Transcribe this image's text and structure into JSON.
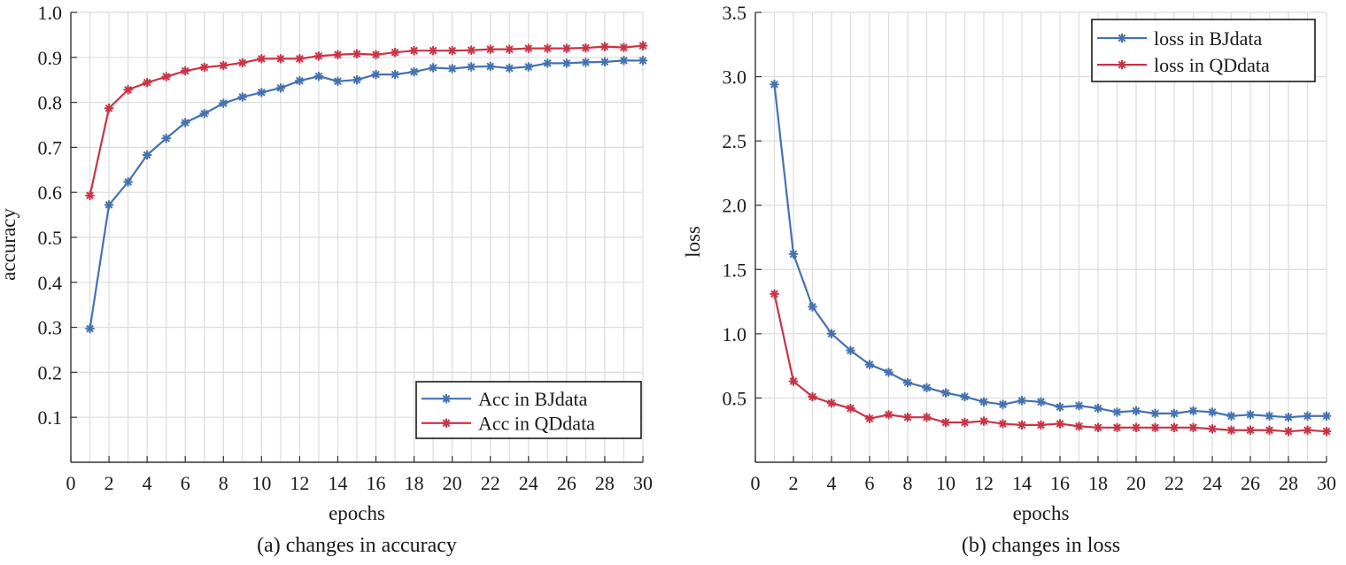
{
  "colors": {
    "bj": "#4572b0",
    "qd": "#c93446",
    "grid": "#dcdcdc",
    "axis": "#333333"
  },
  "chart_data": [
    {
      "id": "accuracy",
      "type": "line",
      "caption": "(a) changes in accuracy",
      "xlabel": "epochs",
      "ylabel": "accuracy",
      "xlim": [
        0,
        30
      ],
      "ylim": [
        0,
        1.0
      ],
      "xticks": [
        0,
        2,
        4,
        6,
        8,
        10,
        12,
        14,
        16,
        18,
        20,
        22,
        24,
        26,
        28,
        30
      ],
      "yticks": [
        0.1,
        0.2,
        0.3,
        0.4,
        0.5,
        0.6,
        0.7,
        0.8,
        0.9,
        1.0
      ],
      "ytick_labels": [
        "0.1",
        "0.2",
        "0.3",
        "0.4",
        "0.5",
        "0.6",
        "0.7",
        "0.8",
        "0.9",
        "1.0"
      ],
      "xtick_labels": [
        "0",
        "2",
        "4",
        "6",
        "8",
        "10",
        "12",
        "14",
        "16",
        "18",
        "20",
        "22",
        "24",
        "26",
        "28",
        "30"
      ],
      "grid": true,
      "legend_position": "bottom-right",
      "x": [
        1,
        2,
        3,
        4,
        5,
        6,
        7,
        8,
        9,
        10,
        11,
        12,
        13,
        14,
        15,
        16,
        17,
        18,
        19,
        20,
        21,
        22,
        23,
        24,
        25,
        26,
        27,
        28,
        29,
        30
      ],
      "series": [
        {
          "name": "Acc in BJdata",
          "color_key": "bj",
          "values": [
            0.297,
            0.572,
            0.623,
            0.683,
            0.72,
            0.755,
            0.775,
            0.798,
            0.812,
            0.822,
            0.832,
            0.848,
            0.858,
            0.847,
            0.85,
            0.862,
            0.862,
            0.868,
            0.877,
            0.875,
            0.879,
            0.88,
            0.876,
            0.879,
            0.887,
            0.887,
            0.889,
            0.89,
            0.893,
            0.893
          ]
        },
        {
          "name": "Acc in QDdata",
          "color_key": "qd",
          "values": [
            0.593,
            0.787,
            0.828,
            0.844,
            0.857,
            0.87,
            0.878,
            0.882,
            0.888,
            0.897,
            0.897,
            0.897,
            0.903,
            0.906,
            0.908,
            0.906,
            0.911,
            0.915,
            0.915,
            0.915,
            0.916,
            0.918,
            0.918,
            0.92,
            0.92,
            0.92,
            0.921,
            0.924,
            0.922,
            0.926
          ]
        }
      ]
    },
    {
      "id": "loss",
      "type": "line",
      "caption": "(b) changes in loss",
      "xlabel": "epochs",
      "ylabel": "loss",
      "xlim": [
        0,
        30
      ],
      "ylim": [
        0,
        3.5
      ],
      "xticks": [
        0,
        2,
        4,
        6,
        8,
        10,
        12,
        14,
        16,
        18,
        20,
        22,
        24,
        26,
        28,
        30
      ],
      "yticks": [
        0.5,
        1.0,
        1.5,
        2.0,
        2.5,
        3.0,
        3.5
      ],
      "ytick_labels": [
        "0.5",
        "1.0",
        "1.5",
        "2.0",
        "2.5",
        "3.0",
        "3.5"
      ],
      "xtick_labels": [
        "0",
        "2",
        "4",
        "6",
        "8",
        "10",
        "12",
        "14",
        "16",
        "18",
        "20",
        "22",
        "24",
        "26",
        "28",
        "30"
      ],
      "grid": true,
      "legend_position": "top-right",
      "x": [
        1,
        2,
        3,
        4,
        5,
        6,
        7,
        8,
        9,
        10,
        11,
        12,
        13,
        14,
        15,
        16,
        17,
        18,
        19,
        20,
        21,
        22,
        23,
        24,
        25,
        26,
        27,
        28,
        29,
        30
      ],
      "series": [
        {
          "name": "loss in BJdata",
          "color_key": "bj",
          "values": [
            2.94,
            1.62,
            1.21,
            1.0,
            0.87,
            0.76,
            0.7,
            0.62,
            0.58,
            0.54,
            0.51,
            0.47,
            0.45,
            0.48,
            0.47,
            0.43,
            0.44,
            0.42,
            0.39,
            0.4,
            0.38,
            0.38,
            0.4,
            0.39,
            0.36,
            0.37,
            0.36,
            0.35,
            0.36,
            0.36
          ]
        },
        {
          "name": "loss in QDdata",
          "color_key": "qd",
          "values": [
            1.31,
            0.63,
            0.51,
            0.46,
            0.42,
            0.34,
            0.37,
            0.35,
            0.35,
            0.31,
            0.31,
            0.32,
            0.3,
            0.29,
            0.29,
            0.3,
            0.28,
            0.27,
            0.27,
            0.27,
            0.27,
            0.27,
            0.27,
            0.26,
            0.25,
            0.25,
            0.25,
            0.24,
            0.25,
            0.24
          ]
        }
      ]
    }
  ]
}
